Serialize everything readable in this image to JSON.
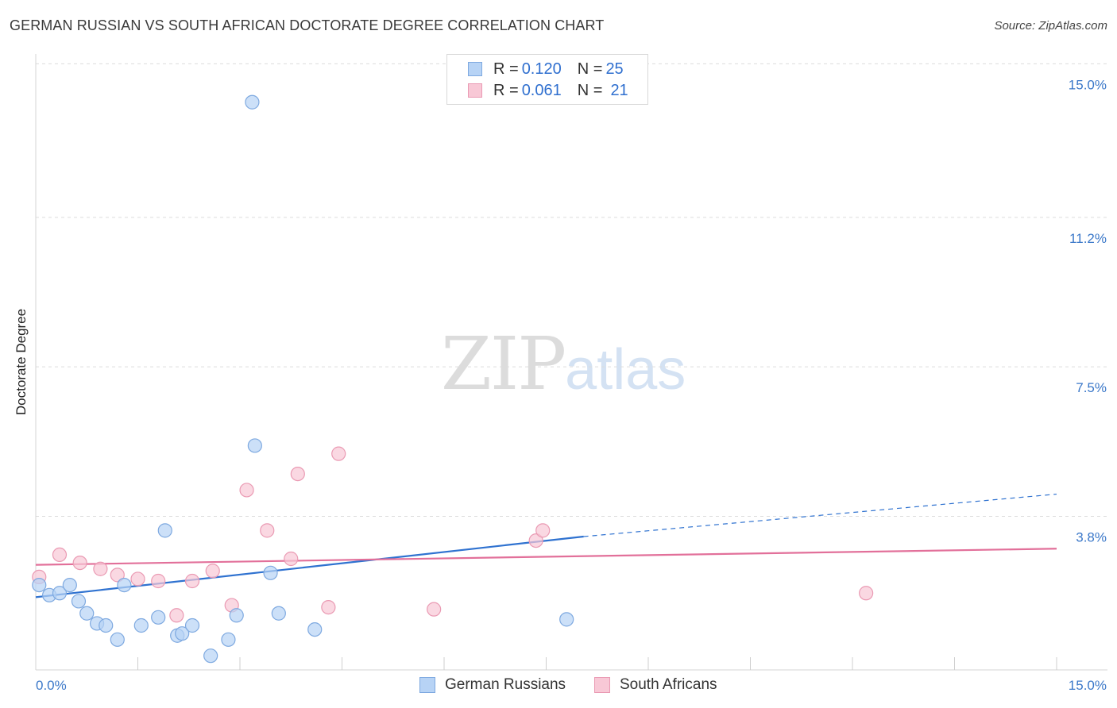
{
  "header": {
    "title": "GERMAN RUSSIAN VS SOUTH AFRICAN DOCTORATE DEGREE CORRELATION CHART",
    "source": "Source: ZipAtlas.com"
  },
  "watermark": {
    "zip": "ZIP",
    "atlas": "atlas"
  },
  "legend": {
    "rows": [
      {
        "r_label": "R = ",
        "r_value": "0.120",
        "n_label": "N = ",
        "n_value": "25"
      },
      {
        "r_label": "R = ",
        "r_value": "0.061",
        "n_label": "N = ",
        "n_value": "21"
      }
    ]
  },
  "bottom_legend": [
    "German Russians",
    "South Africans"
  ],
  "colors": {
    "blue_fill": "#b7d3f5",
    "blue_stroke": "#7ea9e0",
    "blue_line": "#2f72d0",
    "pink_fill": "#f8c8d6",
    "pink_stroke": "#ea9ab3",
    "pink_line": "#e2709a",
    "tick_text": "#3b78c9",
    "grid": "#dcdcdc"
  },
  "chart_data": {
    "type": "scatter",
    "title": "GERMAN RUSSIAN VS SOUTH AFRICAN DOCTORATE DEGREE CORRELATION CHART",
    "xlabel": "",
    "ylabel": "Doctorate Degree",
    "xlim": [
      0,
      15
    ],
    "ylim": [
      0,
      15.4
    ],
    "x_tick_labels": [
      "0.0%",
      "15.0%"
    ],
    "y_ticks": [
      3.8,
      7.5,
      11.2,
      15.0
    ],
    "y_tick_labels": [
      "3.8%",
      "7.5%",
      "11.2%",
      "15.0%"
    ],
    "grid": true,
    "legend_position": "top-center",
    "series": [
      {
        "name": "German Russians",
        "r": 0.12,
        "n": 25,
        "trend": {
          "x": [
            0,
            8.05
          ],
          "y": [
            1.8,
            3.3
          ],
          "dashed_to": [
            15,
            4.35
          ]
        },
        "points": [
          [
            0.05,
            2.1
          ],
          [
            0.2,
            1.85
          ],
          [
            0.35,
            1.9
          ],
          [
            0.5,
            2.1
          ],
          [
            0.63,
            1.7
          ],
          [
            0.75,
            1.4
          ],
          [
            0.9,
            1.15
          ],
          [
            1.03,
            1.1
          ],
          [
            1.2,
            0.75
          ],
          [
            1.3,
            2.1
          ],
          [
            1.55,
            1.1
          ],
          [
            1.8,
            1.3
          ],
          [
            1.9,
            3.45
          ],
          [
            2.08,
            0.85
          ],
          [
            2.15,
            0.9
          ],
          [
            2.3,
            1.1
          ],
          [
            2.57,
            0.35
          ],
          [
            2.83,
            0.75
          ],
          [
            2.95,
            1.35
          ],
          [
            3.18,
            14.05
          ],
          [
            3.22,
            5.55
          ],
          [
            3.45,
            2.4
          ],
          [
            3.57,
            1.4
          ],
          [
            4.1,
            1.0
          ],
          [
            7.8,
            1.25
          ]
        ]
      },
      {
        "name": "South Africans",
        "r": 0.061,
        "n": 21,
        "trend": {
          "x": [
            0,
            15
          ],
          "y": [
            2.6,
            3.0
          ]
        },
        "points": [
          [
            0.05,
            2.3
          ],
          [
            0.35,
            2.85
          ],
          [
            0.65,
            2.65
          ],
          [
            0.95,
            2.5
          ],
          [
            1.2,
            2.35
          ],
          [
            1.5,
            2.25
          ],
          [
            1.8,
            2.2
          ],
          [
            2.07,
            1.35
          ],
          [
            2.3,
            2.2
          ],
          [
            2.6,
            2.45
          ],
          [
            2.88,
            1.6
          ],
          [
            3.1,
            4.45
          ],
          [
            3.4,
            3.45
          ],
          [
            3.75,
            2.75
          ],
          [
            3.85,
            4.85
          ],
          [
            4.3,
            1.55
          ],
          [
            4.45,
            5.35
          ],
          [
            5.85,
            1.5
          ],
          [
            7.35,
            3.2
          ],
          [
            7.45,
            3.45
          ],
          [
            12.2,
            1.9
          ]
        ]
      }
    ]
  }
}
